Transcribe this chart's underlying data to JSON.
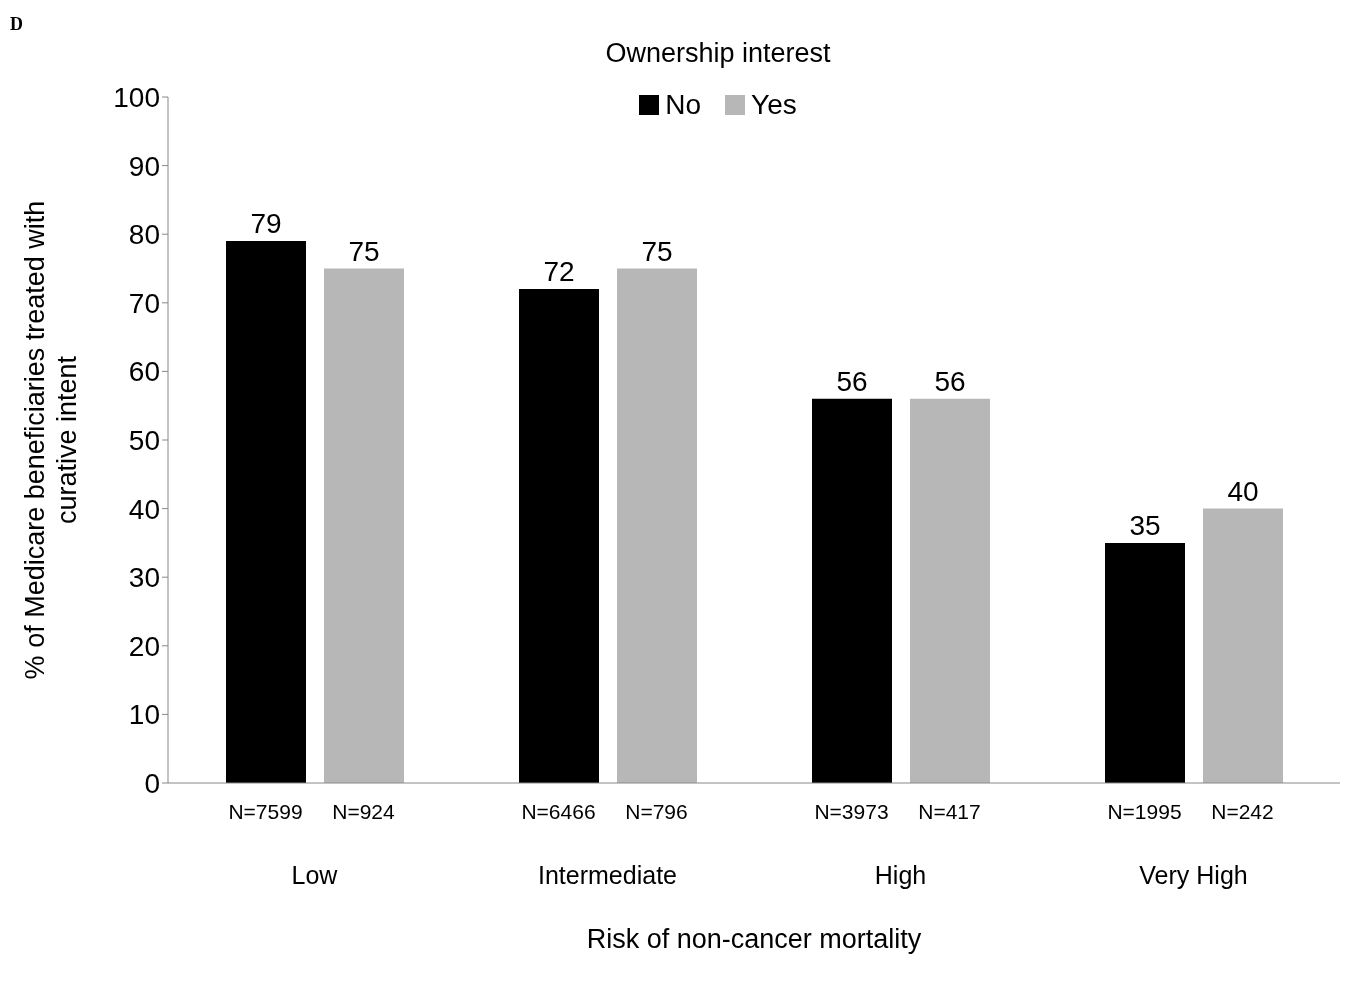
{
  "chart_data": {
    "type": "bar",
    "legend_title": "Ownership interest",
    "xlabel": "Risk of non-cancer mortality",
    "ylabel": "% of Medicare beneficiaries treated with curative intent",
    "categories": [
      "Low",
      "Intermediate",
      "High",
      "Very High"
    ],
    "series": [
      {
        "name": "No",
        "color": "#000000",
        "values": [
          79,
          72,
          56,
          35
        ]
      },
      {
        "name": "Yes",
        "color": "#b7b7b7",
        "values": [
          75,
          75,
          56,
          40
        ]
      }
    ],
    "ylim": [
      0,
      100
    ],
    "yticks": [
      0,
      10,
      20,
      30,
      40,
      50,
      60,
      70,
      80,
      90,
      100
    ],
    "grid": false,
    "legend": "top",
    "data_labels": true,
    "annotations": [
      "D",
      "N=7599",
      "N=924",
      "N=6466",
      "N=796",
      "N=3973",
      "N=417",
      "N=1995",
      "N=242"
    ]
  }
}
